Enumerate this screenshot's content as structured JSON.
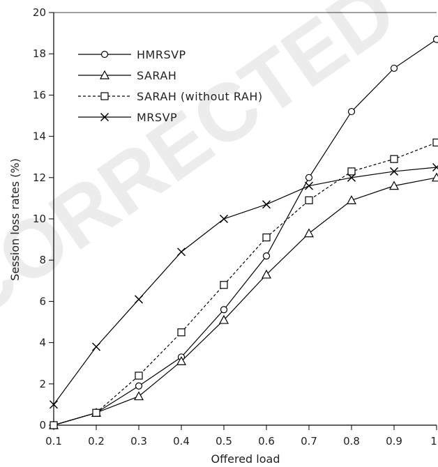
{
  "watermark": "CORRECTED",
  "chart_data": {
    "type": "line",
    "xlabel": "Offered load",
    "ylabel": "Session loss rates (%)",
    "xlim": [
      0.1,
      1.0
    ],
    "ylim": [
      0,
      20
    ],
    "x_ticks": [
      "0.1",
      "0.2",
      "0.3",
      "0.4",
      "0.5",
      "0.6",
      "0.7",
      "0.8",
      "0.9",
      "1"
    ],
    "y_ticks": [
      "0",
      "2",
      "4",
      "6",
      "8",
      "10",
      "12",
      "14",
      "16",
      "18",
      "20"
    ],
    "grid": false,
    "legend_position": "top-left",
    "x": [
      0.1,
      0.2,
      0.3,
      0.4,
      0.5,
      0.6,
      0.7,
      0.8,
      0.9,
      1.0
    ],
    "series": [
      {
        "name": "HMRSVP",
        "marker": "circle",
        "line": "solid",
        "values": [
          0,
          0.6,
          1.9,
          3.3,
          5.6,
          8.2,
          12.0,
          15.2,
          17.3,
          18.7
        ]
      },
      {
        "name": "SARAH",
        "marker": "triangle",
        "line": "solid",
        "values": [
          0,
          0.6,
          1.4,
          3.1,
          5.1,
          7.3,
          9.3,
          10.9,
          11.6,
          12.0
        ]
      },
      {
        "name": "SARAH (without RAH)",
        "marker": "square",
        "line": "dashed",
        "values": [
          0,
          0.6,
          2.4,
          4.5,
          6.8,
          9.1,
          10.9,
          12.3,
          12.9,
          13.7
        ]
      },
      {
        "name": "MRSVP",
        "marker": "x",
        "line": "solid",
        "values": [
          1.0,
          3.8,
          6.1,
          8.4,
          10.0,
          10.7,
          11.6,
          12.0,
          12.3,
          12.5
        ]
      }
    ]
  }
}
